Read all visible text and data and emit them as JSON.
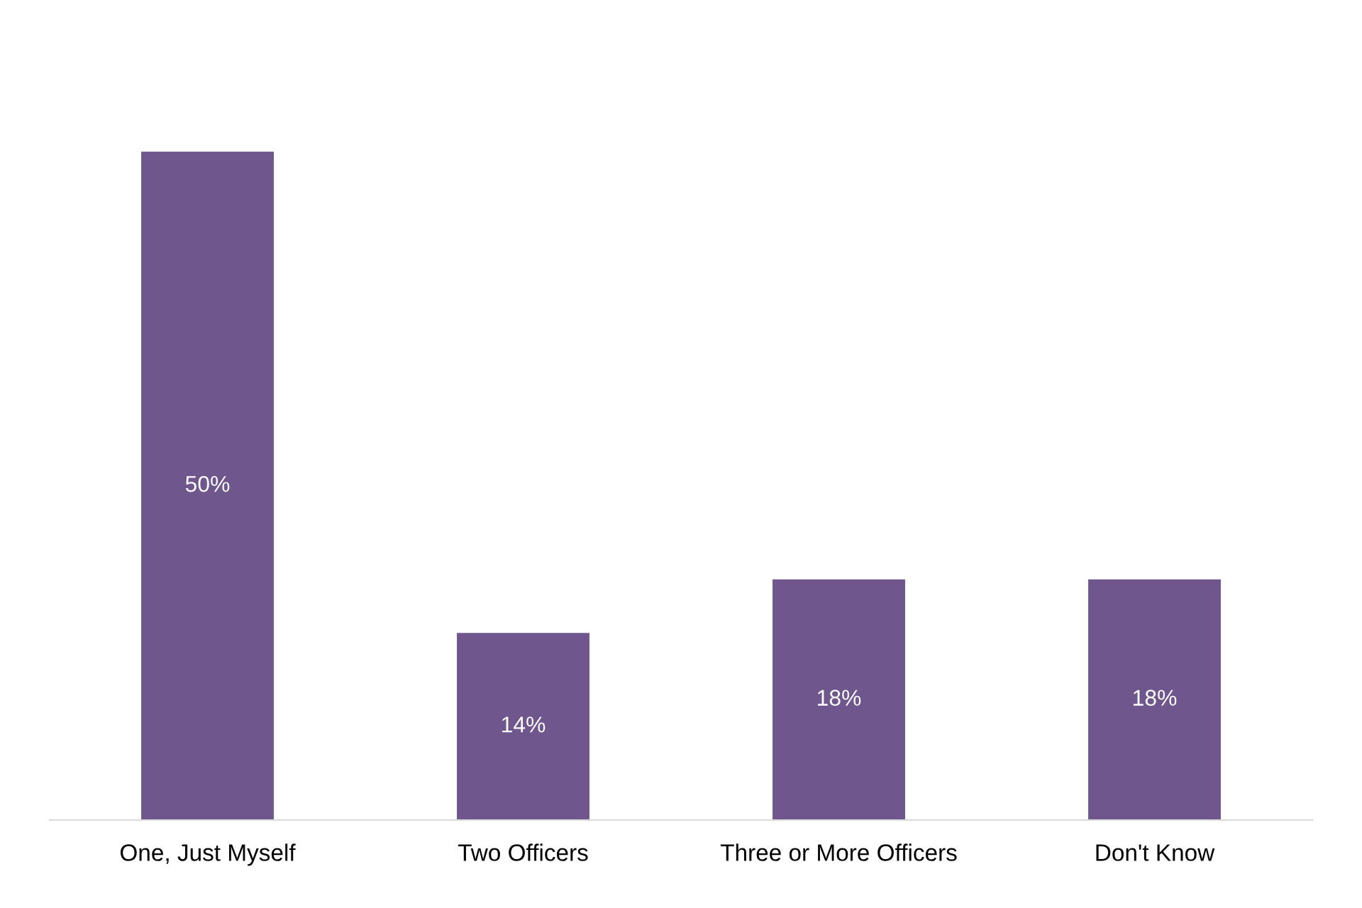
{
  "chart_data": {
    "type": "bar",
    "categories": [
      "One, Just Myself",
      "Two Officers",
      "Three or More Officers",
      "Don't Know"
    ],
    "values": [
      50,
      14,
      18,
      18
    ],
    "value_labels": [
      "50%",
      "14%",
      "18%",
      "18%"
    ],
    "color": "#6f568c",
    "grid": false,
    "legend": false
  }
}
